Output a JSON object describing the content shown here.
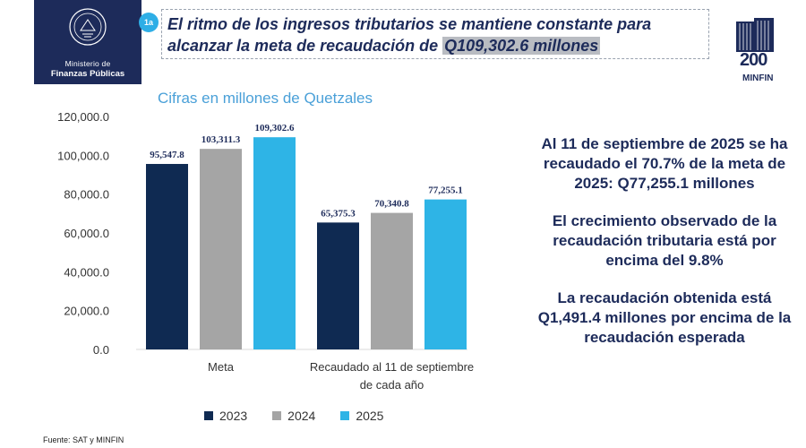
{
  "header": {
    "logo_line1": "Ministerio de",
    "logo_line2": "Finanzas Públicas",
    "badge": "1a",
    "headline_text": "El ritmo de los ingresos tributarios se mantiene constante para alcanzar la meta de recaudación de ",
    "headline_highlight": "Q109,302.6 millones",
    "anniversary_number": "200",
    "anniversary_label": "MINFIN"
  },
  "colors": {
    "navy": "#1d2b5a",
    "series_2023": "#0f2a52",
    "series_2024": "#a5a5a5",
    "series_2025": "#2eb4e6",
    "subtitle": "#4aa0d8"
  },
  "chart_data": {
    "type": "bar",
    "title": "Cifras en millones de Quetzales",
    "categories": [
      "Meta",
      "Recaudado al 11 de septiembre de cada año"
    ],
    "category_label_lines": [
      [
        "Meta"
      ],
      [
        "Recaudado al 11 de septiembre",
        "de cada año"
      ]
    ],
    "series": [
      {
        "name": "2023",
        "values": [
          95547.8,
          65375.3
        ],
        "labels": [
          "95,547.8",
          "65,375.3"
        ]
      },
      {
        "name": "2024",
        "values": [
          103311.3,
          70340.8
        ],
        "labels": [
          "103,311.3",
          "70,340.8"
        ]
      },
      {
        "name": "2025",
        "values": [
          109302.6,
          77255.1
        ],
        "labels": [
          "109,302.6",
          "77,255.1"
        ]
      }
    ],
    "ylim": [
      0,
      120000
    ],
    "yticks": [
      0,
      20000,
      40000,
      60000,
      80000,
      100000,
      120000
    ],
    "ytick_labels": [
      "0.0",
      "20,000.0",
      "40,000.0",
      "60,000.0",
      "80,000.0",
      "100,000.0",
      "120,000.0"
    ],
    "grid": false,
    "legend_position": "bottom"
  },
  "facts": [
    "Al 11 de septiembre de 2025 se ha recaudado el 70.7% de la meta de 2025: Q77,255.1 millones",
    "El crecimiento observado de la recaudación tributaria está por encima del 9.8%",
    "La recaudación obtenida está Q1,491.4 millones por encima de la recaudación esperada"
  ],
  "source": "Fuente: SAT y MINFIN"
}
